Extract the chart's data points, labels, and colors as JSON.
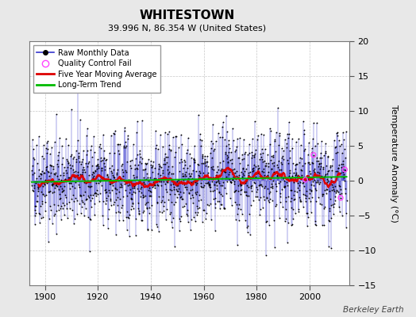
{
  "title": "WHITESTOWN",
  "subtitle": "39.996 N, 86.354 W (United States)",
  "ylabel_right": "Temperature Anomaly (°C)",
  "watermark": "Berkeley Earth",
  "year_start": 1895,
  "year_end": 2013,
  "ylim": [
    -15,
    20
  ],
  "yticks": [
    -15,
    -10,
    -5,
    0,
    5,
    10,
    15,
    20
  ],
  "xticks": [
    1900,
    1920,
    1940,
    1960,
    1980,
    2000
  ],
  "bg_color": "#e8e8e8",
  "plot_bg_color": "#ffffff",
  "grid_color": "#c8c8c8",
  "line_color_raw": "#3333cc",
  "dot_color_raw": "#000000",
  "line_color_moving_avg": "#dd0000",
  "line_color_trend": "#00bb00",
  "qc_fail_color": "#ff44ff",
  "seed": 42,
  "noise_scale": 3.8,
  "trend_slope": 0.003
}
